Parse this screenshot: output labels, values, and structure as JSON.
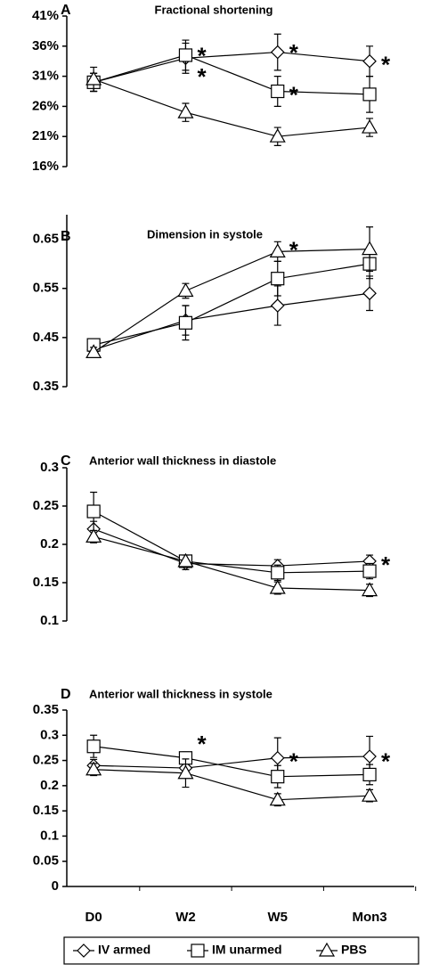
{
  "chart_data": [
    {
      "type": "line",
      "panel": "A",
      "title": "Fractional shortening",
      "categories": [
        "D0",
        "W2",
        "W5",
        "Mon3"
      ],
      "ylim": [
        16,
        41
      ],
      "yticks": [
        {
          "value": 16,
          "label": "16%"
        },
        {
          "value": 21,
          "label": "21%"
        },
        {
          "value": 26,
          "label": "26%"
        },
        {
          "value": 31,
          "label": "31%"
        },
        {
          "value": 36,
          "label": "36%"
        },
        {
          "value": 41,
          "label": "41%"
        }
      ],
      "series": [
        {
          "name": "IV armed",
          "marker": "diamond",
          "color": "#000000",
          "values": [
            30,
            34,
            35,
            33.5
          ],
          "errors": [
            1.5,
            2.5,
            3,
            2.5
          ]
        },
        {
          "name": "IM unarmed",
          "marker": "square",
          "color": "#000000",
          "values": [
            30,
            34.5,
            28.5,
            28
          ],
          "errors": [
            1.5,
            2.5,
            2.5,
            3
          ]
        },
        {
          "name": "PBS",
          "marker": "triangle",
          "color": "#000000",
          "values": [
            30.5,
            25,
            21,
            22.5
          ],
          "errors": [
            2,
            1.5,
            1.5,
            1.5
          ]
        }
      ],
      "annotations": [
        {
          "text": "*",
          "x": "W2",
          "y": 35
        },
        {
          "text": "*",
          "x": "W2",
          "y": 31.5
        },
        {
          "text": "*",
          "x": "W5",
          "y": 35.5
        },
        {
          "text": "*",
          "x": "W5",
          "y": 28.5
        },
        {
          "text": "*",
          "x": "Mon3",
          "y": 33.5
        }
      ]
    },
    {
      "type": "line",
      "panel": "B",
      "title": "Dimension in systole",
      "categories": [
        "D0",
        "W2",
        "W5",
        "Mon3"
      ],
      "ylim": [
        0.35,
        0.7
      ],
      "yticks": [
        0.35,
        0.45,
        0.55,
        0.65
      ],
      "series": [
        {
          "name": "IV armed",
          "marker": "diamond",
          "color": "#000000",
          "values": [
            0.425,
            0.485,
            0.515,
            0.54
          ],
          "errors": [
            0.01,
            0.03,
            0.04,
            0.035
          ]
        },
        {
          "name": "IM unarmed",
          "marker": "square",
          "color": "#000000",
          "values": [
            0.435,
            0.48,
            0.57,
            0.6
          ],
          "errors": [
            0.01,
            0.035,
            0.035,
            0.03
          ]
        },
        {
          "name": "PBS",
          "marker": "triangle",
          "color": "#000000",
          "values": [
            0.42,
            0.545,
            0.625,
            0.63
          ],
          "errors": [
            0.01,
            0.015,
            0.02,
            0.045
          ]
        }
      ],
      "annotations": [
        {
          "text": "*",
          "x": "W5",
          "y": 0.635
        }
      ]
    },
    {
      "type": "line",
      "panel": "C",
      "title": "Anterior wall thickness in diastole",
      "categories": [
        "D0",
        "W2",
        "W5",
        "Mon3"
      ],
      "ylim": [
        0.1,
        0.3
      ],
      "yticks": [
        0.1,
        0.15,
        0.2,
        0.25,
        0.3
      ],
      "series": [
        {
          "name": "IV armed",
          "marker": "diamond",
          "color": "#000000",
          "values": [
            0.22,
            0.175,
            0.172,
            0.178
          ],
          "errors": [
            0.01,
            0.008,
            0.008,
            0.008
          ]
        },
        {
          "name": "IM unarmed",
          "marker": "square",
          "color": "#000000",
          "values": [
            0.243,
            0.178,
            0.163,
            0.165
          ],
          "errors": [
            0.025,
            0.008,
            0.01,
            0.01
          ]
        },
        {
          "name": "PBS",
          "marker": "triangle",
          "color": "#000000",
          "values": [
            0.21,
            0.178,
            0.143,
            0.14
          ],
          "errors": [
            0.008,
            0.008,
            0.008,
            0.008
          ]
        }
      ],
      "annotations": [
        {
          "text": "*",
          "x": "Mon3",
          "y": 0.178
        }
      ]
    },
    {
      "type": "line",
      "panel": "D",
      "title": "Anterior wall thickness in systole",
      "categories": [
        "D0",
        "W2",
        "W5",
        "Mon3"
      ],
      "ylim": [
        0,
        0.35
      ],
      "yticks": [
        0,
        0.05,
        0.1,
        0.15,
        0.2,
        0.25,
        0.3,
        0.35
      ],
      "series": [
        {
          "name": "IV armed",
          "marker": "diamond",
          "color": "#000000",
          "values": [
            0.24,
            0.235,
            0.255,
            0.258
          ],
          "errors": [
            0.012,
            0.01,
            0.04,
            0.04
          ]
        },
        {
          "name": "IM unarmed",
          "marker": "square",
          "color": "#000000",
          "values": [
            0.278,
            0.255,
            0.218,
            0.222
          ],
          "errors": [
            0.022,
            0.012,
            0.022,
            0.02
          ]
        },
        {
          "name": "PBS",
          "marker": "triangle",
          "color": "#000000",
          "values": [
            0.232,
            0.225,
            0.172,
            0.18
          ],
          "errors": [
            0.012,
            0.028,
            0.012,
            0.012
          ]
        }
      ],
      "annotations": [
        {
          "text": "*",
          "x": "W2",
          "y": 0.29
        },
        {
          "text": "*",
          "x": "W5",
          "y": 0.255
        },
        {
          "text": "*",
          "x": "Mon3",
          "y": 0.255
        }
      ]
    }
  ]
}
